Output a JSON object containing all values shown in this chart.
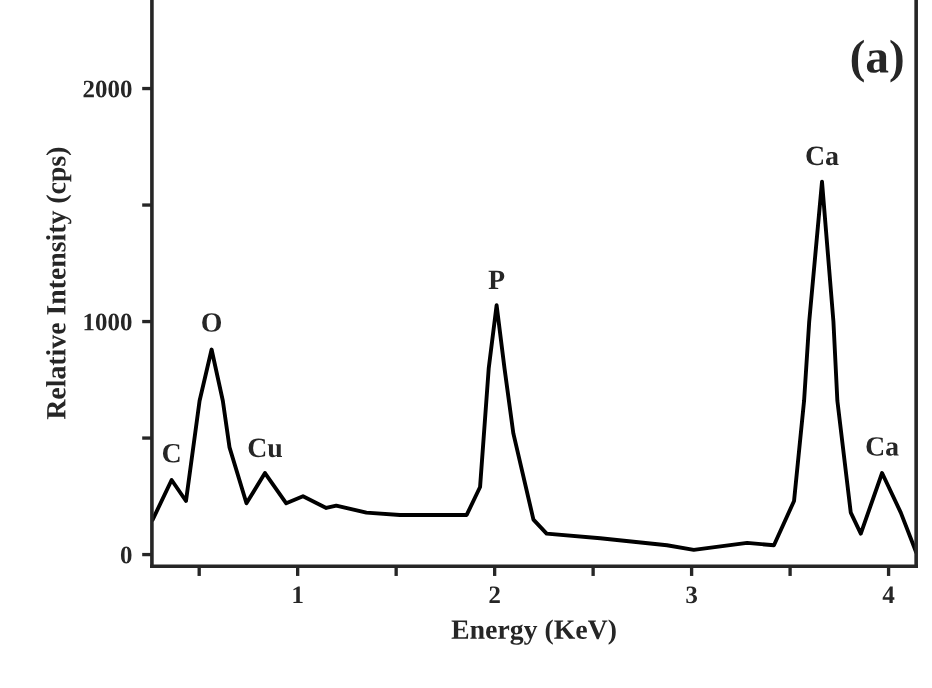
{
  "chart_data": {
    "type": "line",
    "xlabel": "Energy (KeV)",
    "ylabel": "Relative Intensity (cps)",
    "x": [
      0.264,
      0.36,
      0.433,
      0.502,
      0.563,
      0.62,
      0.654,
      0.74,
      0.834,
      0.942,
      1.027,
      1.145,
      1.196,
      1.349,
      1.519,
      1.858,
      1.926,
      1.97,
      2.01,
      2.05,
      2.095,
      2.197,
      2.264,
      2.536,
      2.875,
      3.011,
      3.282,
      3.418,
      3.52,
      3.571,
      3.597,
      3.662,
      3.72,
      3.74,
      3.808,
      3.859,
      3.967,
      4.062,
      4.14
    ],
    "series": [
      {
        "color": "#000000",
        "values": [
          150,
          320,
          230,
          660,
          880,
          660,
          460,
          220,
          350,
          220,
          250,
          200,
          210,
          180,
          170,
          170,
          290,
          800,
          1070,
          800,
          520,
          150,
          90,
          70,
          40,
          20,
          50,
          40,
          230,
          660,
          1000,
          1600,
          1000,
          660,
          180,
          90,
          350,
          180,
          10
        ]
      }
    ],
    "xlim": [
      0.26,
      4.14
    ],
    "ylim": [
      -50,
      2380
    ],
    "xticks": [
      {
        "value": 0.5,
        "label": null
      },
      1,
      {
        "value": 1.5,
        "label": null
      },
      2,
      {
        "value": 2.5,
        "label": null
      },
      3,
      {
        "value": 3.5,
        "label": null
      },
      4
    ],
    "yticks": [
      0,
      {
        "value": 500,
        "label": null
      },
      1000,
      {
        "value": 1500,
        "label": null
      },
      2000
    ],
    "annotations": [
      {
        "text": "C",
        "x": 0.36,
        "y": 323
      },
      {
        "text": "O",
        "x": 0.563,
        "y": 884
      },
      {
        "text": "Cu",
        "x": 0.834,
        "y": 346
      },
      {
        "text": "P",
        "x": 2.01,
        "y": 1067
      },
      {
        "text": "Ca",
        "x": 3.662,
        "y": 1599
      },
      {
        "text": "Ca",
        "x": 3.967,
        "y": 352
      },
      "(a)"
    ],
    "grid": false,
    "legend": false,
    "marker": "none",
    "line_style": "solid"
  }
}
